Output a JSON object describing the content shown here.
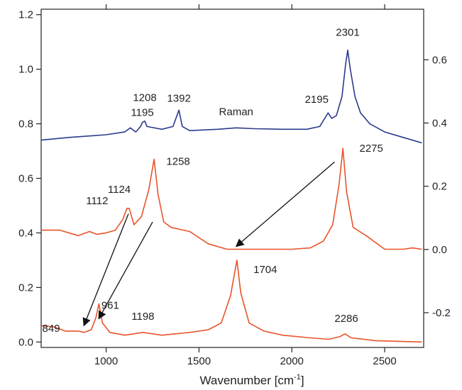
{
  "chart_data": {
    "type": "line",
    "xlabel": "Wavenumber [cm",
    "xlabel_sup": "-1",
    "xlabel_close": "]",
    "xlim": [
      650,
      2710
    ],
    "ylim_left": [
      -0.02,
      1.22
    ],
    "ylim_right": [
      -0.31,
      0.76
    ],
    "x_ticks": [
      1000,
      1500,
      2000,
      2500
    ],
    "x_tick_labels": [
      "1000",
      "1500",
      "2000",
      "2500"
    ],
    "y_left_ticks": [
      0.0,
      0.2,
      0.4,
      0.6,
      0.8,
      1.0,
      1.2
    ],
    "y_left_tick_labels": [
      "0.0",
      "0.2",
      "0.4",
      "0.6",
      "0.8",
      "1.0",
      "1.2"
    ],
    "y_right_ticks": [
      -0.2,
      0.0,
      0.2,
      0.4,
      0.6
    ],
    "y_right_tick_labels": [
      "-0.2",
      "0.0",
      "0.2",
      "0.4",
      "0.6"
    ],
    "grid": false,
    "colors": {
      "raman": "#2b3a8c",
      "ir": "#e8532a",
      "axis": "#222222",
      "arrow": "#111111"
    },
    "series": [
      {
        "name": "Raman",
        "axis": "left",
        "color": "#2b3a8c",
        "points": [
          [
            650,
            0.74
          ],
          [
            800,
            0.75
          ],
          [
            1000,
            0.76
          ],
          [
            1100,
            0.77
          ],
          [
            1130,
            0.785
          ],
          [
            1160,
            0.77
          ],
          [
            1185,
            0.79
          ],
          [
            1195,
            0.805
          ],
          [
            1208,
            0.81
          ],
          [
            1220,
            0.79
          ],
          [
            1300,
            0.78
          ],
          [
            1360,
            0.79
          ],
          [
            1392,
            0.85
          ],
          [
            1410,
            0.79
          ],
          [
            1450,
            0.775
          ],
          [
            1600,
            0.78
          ],
          [
            1700,
            0.785
          ],
          [
            1800,
            0.782
          ],
          [
            1950,
            0.78
          ],
          [
            2080,
            0.78
          ],
          [
            2150,
            0.79
          ],
          [
            2195,
            0.84
          ],
          [
            2215,
            0.82
          ],
          [
            2240,
            0.83
          ],
          [
            2270,
            0.9
          ],
          [
            2290,
            1.02
          ],
          [
            2301,
            1.07
          ],
          [
            2315,
            1.0
          ],
          [
            2340,
            0.9
          ],
          [
            2370,
            0.84
          ],
          [
            2420,
            0.8
          ],
          [
            2500,
            0.77
          ],
          [
            2600,
            0.75
          ],
          [
            2700,
            0.73
          ]
        ]
      },
      {
        "name": "",
        "axis": "left",
        "color": "#e8532a",
        "points": [
          [
            650,
            0.41
          ],
          [
            750,
            0.41
          ],
          [
            850,
            0.39
          ],
          [
            910,
            0.405
          ],
          [
            950,
            0.395
          ],
          [
            1000,
            0.4
          ],
          [
            1050,
            0.41
          ],
          [
            1090,
            0.45
          ],
          [
            1112,
            0.49
          ],
          [
            1124,
            0.49
          ],
          [
            1150,
            0.43
          ],
          [
            1190,
            0.46
          ],
          [
            1230,
            0.56
          ],
          [
            1258,
            0.67
          ],
          [
            1280,
            0.54
          ],
          [
            1310,
            0.44
          ],
          [
            1350,
            0.42
          ],
          [
            1450,
            0.405
          ],
          [
            1550,
            0.36
          ],
          [
            1650,
            0.34
          ],
          [
            1750,
            0.34
          ],
          [
            1850,
            0.34
          ],
          [
            2000,
            0.34
          ],
          [
            2100,
            0.345
          ],
          [
            2170,
            0.37
          ],
          [
            2220,
            0.43
          ],
          [
            2255,
            0.58
          ],
          [
            2275,
            0.71
          ],
          [
            2295,
            0.55
          ],
          [
            2330,
            0.42
          ],
          [
            2400,
            0.39
          ],
          [
            2500,
            0.34
          ],
          [
            2600,
            0.34
          ],
          [
            2650,
            0.345
          ],
          [
            2700,
            0.34
          ]
        ]
      },
      {
        "name": "",
        "axis": "left",
        "color": "#e8532a",
        "points": [
          [
            650,
            0.06
          ],
          [
            720,
            0.055
          ],
          [
            780,
            0.04
          ],
          [
            849,
            0.04
          ],
          [
            880,
            0.035
          ],
          [
            920,
            0.045
          ],
          [
            945,
            0.09
          ],
          [
            961,
            0.14
          ],
          [
            980,
            0.07
          ],
          [
            1020,
            0.035
          ],
          [
            1100,
            0.025
          ],
          [
            1198,
            0.035
          ],
          [
            1300,
            0.025
          ],
          [
            1450,
            0.035
          ],
          [
            1550,
            0.045
          ],
          [
            1620,
            0.07
          ],
          [
            1670,
            0.17
          ],
          [
            1704,
            0.3
          ],
          [
            1725,
            0.18
          ],
          [
            1770,
            0.07
          ],
          [
            1850,
            0.04
          ],
          [
            1950,
            0.025
          ],
          [
            2100,
            0.015
          ],
          [
            2200,
            0.01
          ],
          [
            2260,
            0.02
          ],
          [
            2286,
            0.03
          ],
          [
            2320,
            0.015
          ],
          [
            2450,
            0.005
          ],
          [
            2700,
            0.0
          ]
        ]
      }
    ],
    "peak_labels": [
      {
        "text": "2301",
        "x": 2301,
        "y": 1.07
      },
      {
        "text": "1208",
        "x": 1208,
        "y": 0.81
      },
      {
        "text": "1195",
        "x": 1195,
        "y": 0.805
      },
      {
        "text": "1392",
        "x": 1392,
        "y": 0.85
      },
      {
        "text": "2195",
        "x": 2195,
        "y": 0.84
      },
      {
        "text": "Raman",
        "x": 1700,
        "y": 0.785
      },
      {
        "text": "2275",
        "x": 2275,
        "y": 0.71
      },
      {
        "text": "1258",
        "x": 1258,
        "y": 0.67
      },
      {
        "text": "1124",
        "x": 1124,
        "y": 0.49
      },
      {
        "text": "1112",
        "x": 1112,
        "y": 0.49
      },
      {
        "text": "1704",
        "x": 1704,
        "y": 0.3
      },
      {
        "text": "849",
        "x": 849,
        "y": 0.04
      },
      {
        "text": "961",
        "x": 961,
        "y": 0.14
      },
      {
        "text": "1198",
        "x": 1198,
        "y": 0.035
      },
      {
        "text": "2286",
        "x": 2286,
        "y": 0.03
      }
    ],
    "arrows": [
      {
        "from": [
          1120,
          0.47
        ],
        "to": [
          880,
          0.06
        ]
      },
      {
        "from": [
          1250,
          0.44
        ],
        "to": [
          960,
          0.085
        ]
      },
      {
        "from": [
          2230,
          0.66
        ],
        "to": [
          1700,
          0.35
        ]
      }
    ]
  }
}
